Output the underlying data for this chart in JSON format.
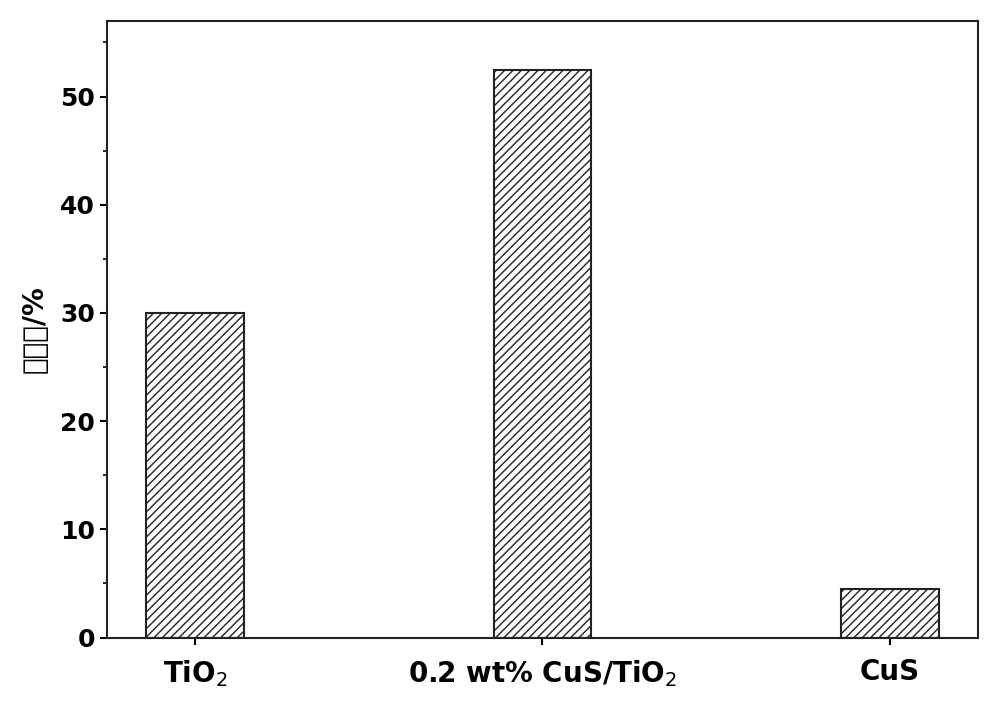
{
  "categories": [
    "TiO$_2$",
    "0.2 wt% CuS/TiO$_2$",
    "CuS"
  ],
  "values": [
    30,
    52.5,
    4.5
  ],
  "bar_width": 0.28,
  "ylim": [
    0,
    57
  ],
  "yticks": [
    0,
    10,
    20,
    30,
    40,
    50
  ],
  "ylabel": "降解率/%",
  "bar_facecolor": "white",
  "bar_edgecolor": "#222222",
  "hatch": "////",
  "background_color": "#ffffff",
  "ylabel_fontsize": 20,
  "tick_fontsize": 18,
  "xlabel_fontsize": 20,
  "spine_linewidth": 1.5,
  "tick_linewidth": 1.5
}
